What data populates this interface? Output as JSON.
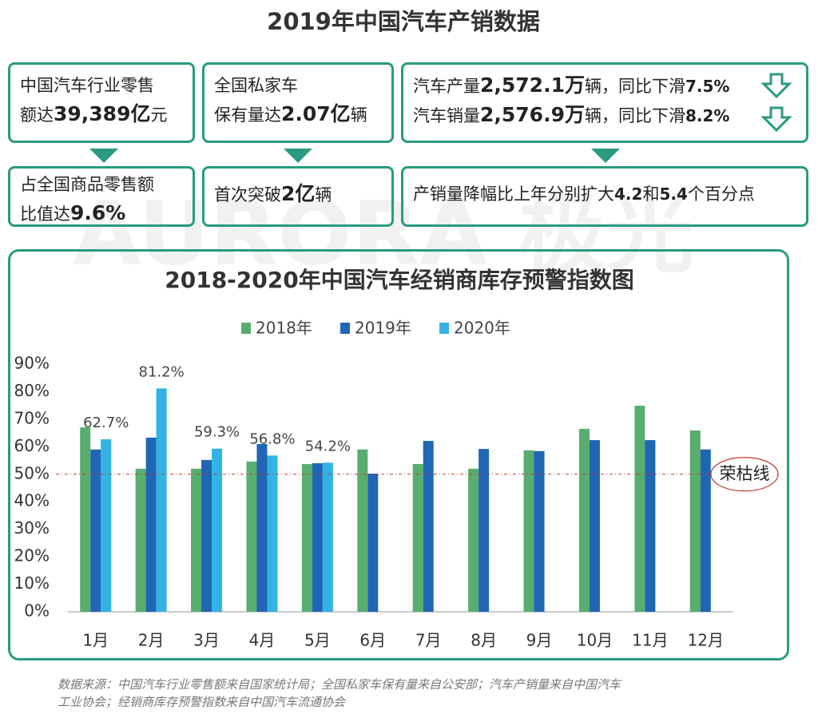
{
  "title": "2019年中国汽车产销数据",
  "watermark": "AURORA 极光",
  "cards": [
    {
      "text1": "中国汽车行业零售",
      "text2": "额达",
      "figure": "39,389亿",
      "unit": "元"
    },
    {
      "text1": "全国私家车",
      "text2": "保有量达",
      "figure": "2.07亿",
      "unit": "辆"
    },
    {
      "rows": [
        {
          "label": "汽车产量",
          "figure": "2,572.1万",
          "text": "辆，同比下滑",
          "change": "7.5%"
        },
        {
          "label": "汽车销量",
          "figure": "2,576.9万",
          "text": "辆，同比下滑",
          "change": "8.2%"
        }
      ]
    }
  ],
  "notes": [
    {
      "text1": "占全国商品零售额",
      "text2": "比值达",
      "figure": "9.6%"
    },
    {
      "text": "首次突破",
      "figure": "2亿",
      "unit": "辆"
    },
    {
      "text": "产销量降幅比上年分别扩大",
      "figure1": "4.2",
      "and": "和",
      "figure2": "5.4",
      "unit": "个百分点"
    }
  ],
  "chart_data": {
    "type": "bar",
    "title": "2018-2020年中国汽车经销商库存预警指数图",
    "categories": [
      "1月",
      "2月",
      "3月",
      "4月",
      "5月",
      "6月",
      "7月",
      "8月",
      "9月",
      "10月",
      "11月",
      "12月"
    ],
    "series": [
      {
        "name": "2018年",
        "color": "#58ad6f",
        "values": [
          67,
          52,
          52,
          54.6,
          53.7,
          59,
          53.7,
          52,
          58.7,
          66.5,
          74.9,
          65.9
        ]
      },
      {
        "name": "2019年",
        "color": "#1f66b5",
        "values": [
          59,
          63.3,
          55.2,
          61,
          54,
          50.2,
          62.1,
          59.2,
          58.4,
          62.4,
          62.4,
          59
        ]
      },
      {
        "name": "2020年",
        "color": "#33b3e3",
        "values": [
          62.7,
          81.2,
          59.3,
          56.8,
          54.2,
          null,
          null,
          null,
          null,
          null,
          null,
          null
        ],
        "value_labels": [
          "62.7%",
          "81.2%",
          "59.3%",
          "56.8%",
          "54.2%",
          null,
          null,
          null,
          null,
          null,
          null,
          null
        ]
      }
    ],
    "ylim": [
      0,
      90
    ],
    "yticks": [
      {
        "value": 0,
        "label": "0%"
      },
      {
        "value": 10,
        "label": "10%"
      },
      {
        "value": 20,
        "label": "20%"
      },
      {
        "value": 30,
        "label": "30%"
      },
      {
        "value": 40,
        "label": "40%"
      },
      {
        "value": 50,
        "label": "50%"
      },
      {
        "value": 60,
        "label": "60%"
      },
      {
        "value": 70,
        "label": "70%"
      },
      {
        "value": 80,
        "label": "80%"
      },
      {
        "value": 90,
        "label": "90%"
      }
    ],
    "grid": false,
    "reference_line": {
      "value": 50,
      "label": "荣枯线",
      "color": "#c0392b"
    }
  },
  "source": [
    "数据来源：中国汽车行业零售额来自国家统计局；全国私家车保有量来自公安部；汽车产销量来自中国汽车",
    "工业协会；经销商库存预警指数来自中国汽车流通协会"
  ]
}
